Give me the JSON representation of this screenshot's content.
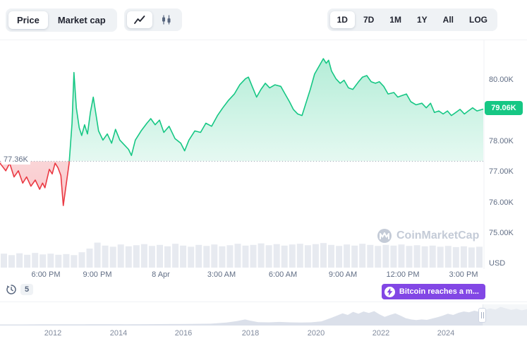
{
  "toolbar": {
    "metric": {
      "options": [
        {
          "label": "Price",
          "active": true
        },
        {
          "label": "Market cap",
          "active": false
        }
      ]
    },
    "chart_type": {
      "options": [
        {
          "name": "line-chart-icon",
          "active": true
        },
        {
          "name": "candlestick-icon",
          "active": false
        }
      ]
    },
    "ranges": {
      "selected": "1D",
      "options": [
        "1D",
        "7D",
        "1M",
        "1Y",
        "All",
        "LOG"
      ]
    }
  },
  "watermark": {
    "label": "CoinMarketCap"
  },
  "history": {
    "count": "5"
  },
  "annotation": {
    "label": "Bitcoin reaches a m..."
  },
  "chart_data": {
    "main": {
      "type": "area",
      "title": "Bitcoin price, 1D view",
      "unit_label": "USD",
      "baseline": 77.36,
      "baseline_label": "77.36K",
      "current_price": 79.06,
      "current_price_label": "79.06K",
      "ylim": [
        73.9,
        81.3
      ],
      "grid": "off",
      "colors": {
        "up": "#16c784",
        "down": "#ea3943",
        "volume": "#e7eaf0",
        "baseline_line": "#9aa4b5"
      },
      "y_ticks": [
        {
          "value": 80,
          "label": "80.00K"
        },
        {
          "value": 78,
          "label": "78.00K"
        },
        {
          "value": 77,
          "label": "77.00K"
        },
        {
          "value": 76,
          "label": "76.00K"
        },
        {
          "value": 75,
          "label": "75.00K"
        }
      ],
      "x_ticks": [
        {
          "t": 0.095,
          "label": "6:00 PM"
        },
        {
          "t": 0.201,
          "label": "9:00 PM"
        },
        {
          "t": 0.333,
          "label": "8 Apr"
        },
        {
          "t": 0.458,
          "label": "3:00 AM"
        },
        {
          "t": 0.584,
          "label": "6:00 AM"
        },
        {
          "t": 0.709,
          "label": "9:00 AM"
        },
        {
          "t": 0.832,
          "label": "12:00 PM"
        },
        {
          "t": 0.958,
          "label": "3:00 PM"
        }
      ],
      "points": [
        [
          0,
          77.3
        ],
        [
          0.012,
          77.05
        ],
        [
          0.02,
          77.3
        ],
        [
          0.029,
          76.85
        ],
        [
          0.038,
          77.05
        ],
        [
          0.047,
          76.65
        ],
        [
          0.055,
          76.85
        ],
        [
          0.064,
          76.55
        ],
        [
          0.073,
          76.75
        ],
        [
          0.082,
          76.45
        ],
        [
          0.088,
          76.65
        ],
        [
          0.093,
          76.5
        ],
        [
          0.102,
          77.1
        ],
        [
          0.108,
          76.95
        ],
        [
          0.114,
          77.3
        ],
        [
          0.12,
          77.15
        ],
        [
          0.126,
          76.9
        ],
        [
          0.131,
          75.92
        ],
        [
          0.137,
          76.6
        ],
        [
          0.143,
          77.3
        ],
        [
          0.149,
          78.6
        ],
        [
          0.153,
          80.25
        ],
        [
          0.158,
          79.1
        ],
        [
          0.164,
          78.45
        ],
        [
          0.169,
          78.2
        ],
        [
          0.175,
          78.55
        ],
        [
          0.181,
          78.25
        ],
        [
          0.187,
          78.95
        ],
        [
          0.193,
          79.45
        ],
        [
          0.199,
          78.85
        ],
        [
          0.204,
          78.35
        ],
        [
          0.213,
          78.05
        ],
        [
          0.222,
          78.25
        ],
        [
          0.231,
          77.95
        ],
        [
          0.239,
          78.4
        ],
        [
          0.248,
          78.05
        ],
        [
          0.257,
          77.9
        ],
        [
          0.266,
          77.75
        ],
        [
          0.272,
          77.55
        ],
        [
          0.28,
          78.05
        ],
        [
          0.292,
          78.35
        ],
        [
          0.304,
          78.6
        ],
        [
          0.312,
          78.75
        ],
        [
          0.321,
          78.55
        ],
        [
          0.33,
          78.7
        ],
        [
          0.339,
          78.3
        ],
        [
          0.35,
          78.5
        ],
        [
          0.362,
          78.1
        ],
        [
          0.374,
          77.95
        ],
        [
          0.382,
          77.7
        ],
        [
          0.391,
          78.05
        ],
        [
          0.403,
          78.35
        ],
        [
          0.415,
          78.3
        ],
        [
          0.426,
          78.6
        ],
        [
          0.438,
          78.5
        ],
        [
          0.45,
          78.85
        ],
        [
          0.461,
          79.1
        ],
        [
          0.473,
          79.35
        ],
        [
          0.485,
          79.55
        ],
        [
          0.496,
          79.85
        ],
        [
          0.508,
          80.05
        ],
        [
          0.514,
          80.1
        ],
        [
          0.523,
          79.75
        ],
        [
          0.531,
          79.45
        ],
        [
          0.54,
          79.7
        ],
        [
          0.549,
          79.9
        ],
        [
          0.558,
          79.75
        ],
        [
          0.569,
          79.85
        ],
        [
          0.581,
          79.8
        ],
        [
          0.59,
          79.55
        ],
        [
          0.599,
          79.3
        ],
        [
          0.607,
          79.05
        ],
        [
          0.616,
          78.9
        ],
        [
          0.625,
          78.85
        ],
        [
          0.634,
          79.3
        ],
        [
          0.642,
          79.7
        ],
        [
          0.651,
          80.2
        ],
        [
          0.66,
          80.45
        ],
        [
          0.669,
          80.7
        ],
        [
          0.675,
          80.55
        ],
        [
          0.68,
          80.65
        ],
        [
          0.686,
          80.3
        ],
        [
          0.695,
          80.05
        ],
        [
          0.704,
          79.9
        ],
        [
          0.712,
          80
        ],
        [
          0.721,
          79.75
        ],
        [
          0.73,
          79.7
        ],
        [
          0.742,
          79.95
        ],
        [
          0.75,
          80.1
        ],
        [
          0.759,
          80.15
        ],
        [
          0.768,
          79.95
        ],
        [
          0.777,
          79.9
        ],
        [
          0.785,
          79.95
        ],
        [
          0.794,
          79.8
        ],
        [
          0.803,
          79.55
        ],
        [
          0.815,
          79.6
        ],
        [
          0.823,
          79.45
        ],
        [
          0.832,
          79.5
        ],
        [
          0.841,
          79.55
        ],
        [
          0.85,
          79.3
        ],
        [
          0.861,
          79.2
        ],
        [
          0.873,
          79.25
        ],
        [
          0.882,
          79.1
        ],
        [
          0.891,
          79.25
        ],
        [
          0.899,
          78.95
        ],
        [
          0.908,
          79
        ],
        [
          0.917,
          78.9
        ],
        [
          0.926,
          79
        ],
        [
          0.934,
          78.85
        ],
        [
          0.943,
          78.95
        ],
        [
          0.952,
          79.05
        ],
        [
          0.961,
          78.9
        ],
        [
          0.969,
          79
        ],
        [
          0.978,
          79.1
        ],
        [
          0.987,
          79
        ],
        [
          1,
          79.06
        ]
      ],
      "volume_rel": [
        0.38,
        0.34,
        0.39,
        0.35,
        0.4,
        0.36,
        0.38,
        0.35,
        0.37,
        0.34,
        0.42,
        0.52,
        0.68,
        0.6,
        0.57,
        0.63,
        0.58,
        0.61,
        0.64,
        0.59,
        0.62,
        0.58,
        0.65,
        0.6,
        0.57,
        0.62,
        0.59,
        0.63,
        0.58,
        0.61,
        0.65,
        0.6,
        0.62,
        0.66,
        0.61,
        0.64,
        0.6,
        0.63,
        0.65,
        0.61,
        0.64,
        0.67,
        0.62,
        0.59,
        0.63,
        0.6,
        0.65,
        0.62,
        0.59,
        0.62,
        0.6,
        0.63,
        0.59,
        0.61,
        0.58,
        0.6,
        0.57,
        0.59,
        0.56,
        0.58,
        0.55,
        0.57
      ]
    },
    "timeline": {
      "type": "area",
      "title": "All-time minimap",
      "years": [
        {
          "t": 0.1,
          "label": "2012"
        },
        {
          "t": 0.225,
          "label": "2014"
        },
        {
          "t": 0.348,
          "label": "2016"
        },
        {
          "t": 0.475,
          "label": "2018"
        },
        {
          "t": 0.6,
          "label": "2020"
        },
        {
          "t": 0.723,
          "label": "2022"
        },
        {
          "t": 0.846,
          "label": "2024"
        }
      ],
      "points": [
        [
          0,
          0.02
        ],
        [
          0.04,
          0.02
        ],
        [
          0.08,
          0.025
        ],
        [
          0.12,
          0.03
        ],
        [
          0.16,
          0.03
        ],
        [
          0.2,
          0.035
        ],
        [
          0.24,
          0.03
        ],
        [
          0.28,
          0.035
        ],
        [
          0.32,
          0.04
        ],
        [
          0.36,
          0.045
        ],
        [
          0.4,
          0.06
        ],
        [
          0.43,
          0.12
        ],
        [
          0.45,
          0.2
        ],
        [
          0.465,
          0.28
        ],
        [
          0.475,
          0.22
        ],
        [
          0.49,
          0.14
        ],
        [
          0.51,
          0.13
        ],
        [
          0.53,
          0.15
        ],
        [
          0.55,
          0.13
        ],
        [
          0.57,
          0.12
        ],
        [
          0.59,
          0.13
        ],
        [
          0.61,
          0.18
        ],
        [
          0.63,
          0.38
        ],
        [
          0.65,
          0.6
        ],
        [
          0.66,
          0.52
        ],
        [
          0.67,
          0.68
        ],
        [
          0.68,
          0.58
        ],
        [
          0.69,
          0.7
        ],
        [
          0.7,
          0.62
        ],
        [
          0.71,
          0.72
        ],
        [
          0.72,
          0.55
        ],
        [
          0.73,
          0.42
        ],
        [
          0.74,
          0.52
        ],
        [
          0.75,
          0.6
        ],
        [
          0.76,
          0.48
        ],
        [
          0.77,
          0.35
        ],
        [
          0.78,
          0.28
        ],
        [
          0.79,
          0.25
        ],
        [
          0.8,
          0.28
        ],
        [
          0.81,
          0.26
        ],
        [
          0.82,
          0.33
        ],
        [
          0.83,
          0.4
        ],
        [
          0.84,
          0.48
        ],
        [
          0.85,
          0.58
        ],
        [
          0.86,
          0.52
        ],
        [
          0.87,
          0.63
        ],
        [
          0.88,
          0.7
        ],
        [
          0.89,
          0.66
        ],
        [
          0.9,
          0.74
        ],
        [
          0.91,
          0.68
        ],
        [
          0.92,
          0.78
        ],
        [
          0.93,
          0.86
        ],
        [
          0.94,
          0.8
        ],
        [
          0.95,
          0.94
        ],
        [
          0.96,
          0.86
        ],
        [
          0.97,
          0.78
        ],
        [
          0.98,
          0.84
        ],
        [
          0.99,
          0.76
        ],
        [
          1,
          0.82
        ]
      ]
    }
  }
}
